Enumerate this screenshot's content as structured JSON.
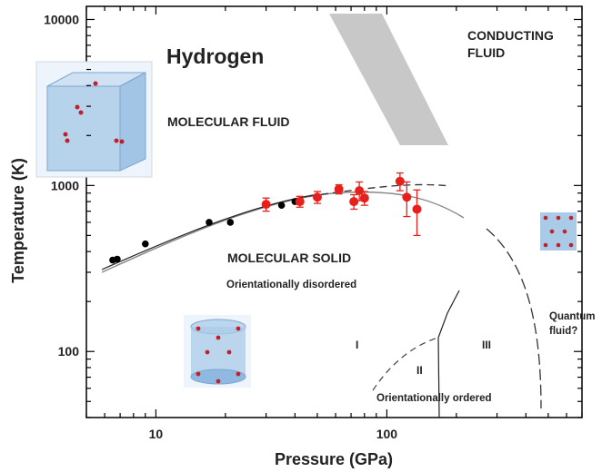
{
  "chart_data": {
    "type": "scatter",
    "title": "Hydrogen",
    "xlabel": "Pressure (GPa)",
    "ylabel": "Temperature (K)",
    "xscale": "log",
    "yscale": "log",
    "xlim": [
      5,
      700
    ],
    "ylim": [
      40,
      12000
    ],
    "x_ticks": [
      10,
      100
    ],
    "y_ticks": [
      100,
      1000,
      10000
    ],
    "grid": false,
    "series": [
      {
        "marker": "black-dot",
        "color": "#000000",
        "points": [
          [
            6.5,
            355
          ],
          [
            6.8,
            360
          ],
          [
            9,
            445
          ],
          [
            17,
            600
          ],
          [
            21,
            600
          ],
          [
            35,
            760
          ],
          [
            40,
            800
          ]
        ]
      },
      {
        "marker": "red-dot-errorbar",
        "color": "#e8201c",
        "points": [
          {
            "x": 30,
            "y": 770,
            "err": 70
          },
          {
            "x": 42,
            "y": 800,
            "err": 60
          },
          {
            "x": 50,
            "y": 850,
            "err": 70
          },
          {
            "x": 62,
            "y": 950,
            "err": 60
          },
          {
            "x": 72,
            "y": 800,
            "err": 80
          },
          {
            "x": 76,
            "y": 930,
            "err": 120
          },
          {
            "x": 80,
            "y": 840,
            "err": 80
          },
          {
            "x": 114,
            "y": 1060,
            "err": 130
          },
          {
            "x": 122,
            "y": 850,
            "err": 200
          },
          {
            "x": 135,
            "y": 720,
            "err": 220
          }
        ]
      }
    ],
    "annotations": [
      {
        "text": "Hydrogen",
        "role": "title"
      },
      {
        "text": "CONDUCTING",
        "role": "region"
      },
      {
        "text": "FLUID",
        "role": "region"
      },
      {
        "text": "MOLECULAR FLUID",
        "role": "region"
      },
      {
        "text": "MOLECULAR SOLID",
        "role": "region"
      },
      {
        "text": "Orientationally disordered",
        "role": "region"
      },
      {
        "text": "Orientationally ordered",
        "role": "region"
      },
      {
        "text": "I",
        "role": "phase"
      },
      {
        "text": "II",
        "role": "phase"
      },
      {
        "text": "III",
        "role": "phase"
      },
      {
        "text": "Quantum",
        "role": "region"
      },
      {
        "text": "fluid?",
        "role": "region"
      }
    ],
    "colors": {
      "red_points": "#e8201c",
      "black_points": "#000000",
      "band": "#c8c8c8",
      "cube": "#a9cbe8"
    }
  }
}
